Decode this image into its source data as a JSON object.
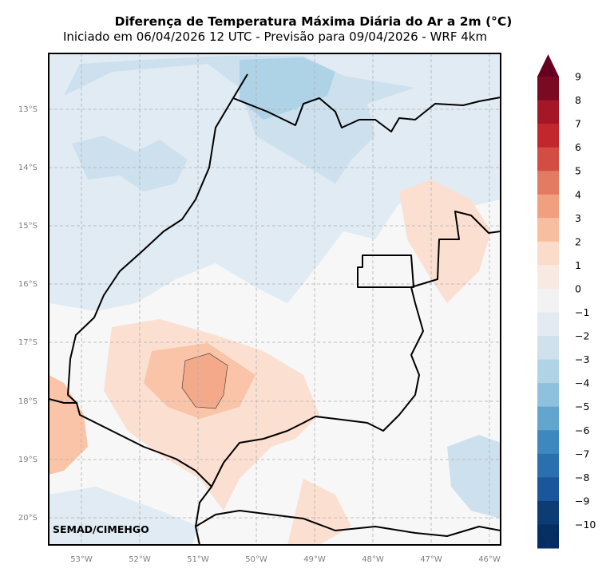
{
  "header": {
    "title": "Diferença de Temperatura Máxima Diária do Ar a 2m (°C)",
    "subtitle": "Iniciado em 06/04/2026 12 UTC - Previsão para 09/04/2026 - WRF 4km"
  },
  "map": {
    "lat_ticks": [
      "13°S",
      "14°S",
      "15°S",
      "16°S",
      "17°S",
      "18°S",
      "19°S",
      "20°S"
    ],
    "lon_ticks": [
      "53°W",
      "52°W",
      "51°W",
      "50°W",
      "49°W",
      "48°W",
      "47°W",
      "46°W"
    ],
    "credit": "SEMAD/CIMEHGO",
    "palette": {
      "land_neutral": "#f7f7f7",
      "cool_1": "#e1ebf3",
      "cool_2": "#cde0ee",
      "cool_3": "#aed2e6",
      "warm_1": "#fbe0d1",
      "warm_2": "#f9c4a8",
      "warm_3": "#f4a98a"
    }
  },
  "colorbar": {
    "labels": [
      "9",
      "8",
      "7",
      "6",
      "5",
      "4",
      "3",
      "2",
      "1",
      "0",
      "−1",
      "−2",
      "−3",
      "−4",
      "−5",
      "−6",
      "−7",
      "−8",
      "−9",
      "−10"
    ],
    "colors": [
      "#7a0a22",
      "#a51726",
      "#c1272d",
      "#d44d44",
      "#e27b62",
      "#f0a07f",
      "#f7bfa0",
      "#fbdcca",
      "#f8eae3",
      "#f2f2f2",
      "#e3eaf1",
      "#cfe1ed",
      "#b0d3e6",
      "#8dc1dd",
      "#62a5cf",
      "#3d89bf",
      "#2a6fae",
      "#1a569b",
      "#0d3b74",
      "#062d63"
    ],
    "top_color": "#67001f",
    "bottom_color": "#053061"
  }
}
